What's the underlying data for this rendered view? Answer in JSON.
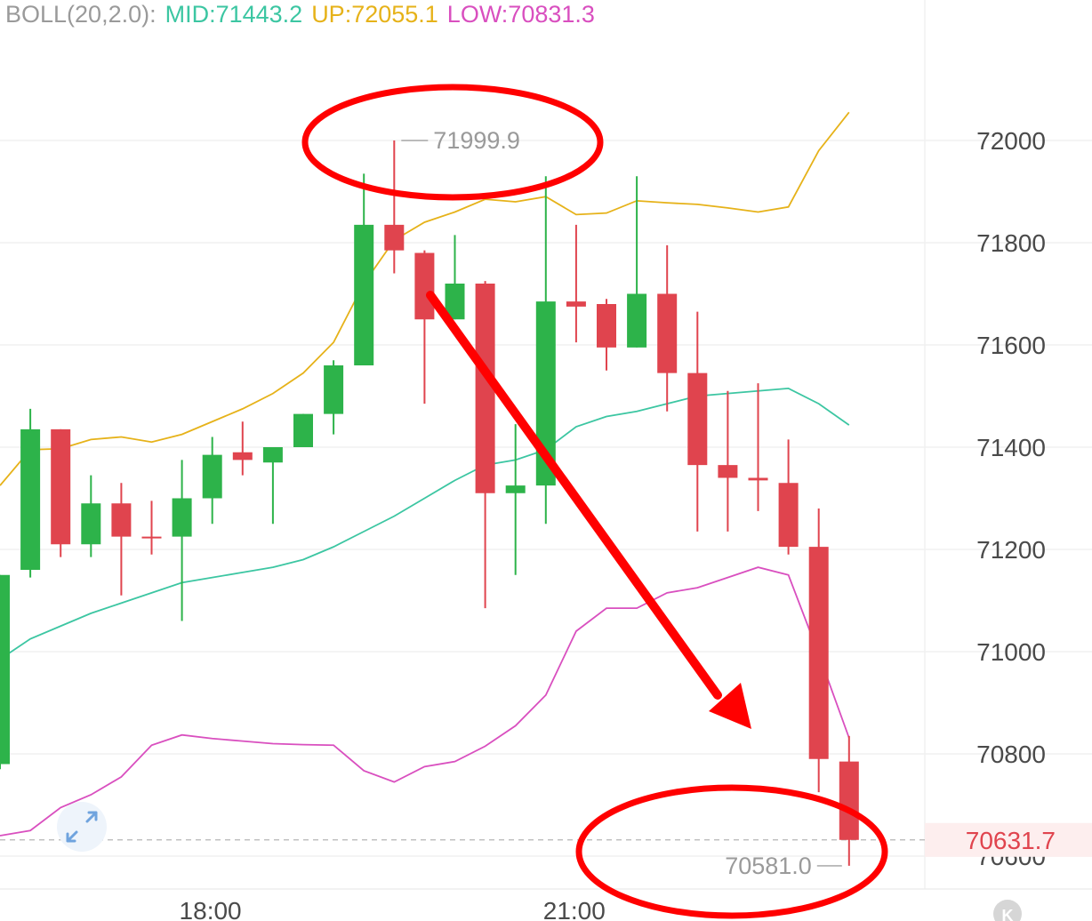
{
  "indicator": {
    "label": "BOLL(20,2.0):",
    "mid": "MID:71443.2",
    "up": "UP:72055.1",
    "low": "LOW:70831.3"
  },
  "colors": {
    "up_candle": "#2db34a",
    "down_candle": "#e0444e",
    "mid_line": "#3cc6a2",
    "up_line": "#e6b219",
    "low_line": "#d94fbf",
    "axis_text": "#4a4a4a",
    "annotation": "#ff0000",
    "last_price_text": "#e0444e",
    "last_price_bg": "#fdeeee"
  },
  "chart_data": {
    "type": "candlestick",
    "ylim": [
      70500,
      72260
    ],
    "y_ticks": [
      "72000",
      "71800",
      "71600",
      "71400",
      "71200",
      "71000",
      "70800",
      "70600"
    ],
    "x_ticks": [
      {
        "label": "18:00",
        "index": 6
      },
      {
        "label": "21:00",
        "index": 18
      }
    ],
    "high_label": "71999.9",
    "low_label": "70581.0",
    "last_price": "70631.7",
    "last_price_value": 70631.7,
    "candles": [
      {
        "o": 70780,
        "c": 71150,
        "h": 71150,
        "l": 70770
      },
      {
        "o": 71160,
        "c": 71435,
        "h": 71475,
        "l": 71145
      },
      {
        "o": 71435,
        "c": 71210,
        "h": 71435,
        "l": 71185
      },
      {
        "o": 71210,
        "c": 71290,
        "h": 71345,
        "l": 71185
      },
      {
        "o": 71290,
        "c": 71225,
        "h": 71330,
        "l": 71110
      },
      {
        "o": 71225,
        "c": 71224,
        "h": 71295,
        "l": 71190
      },
      {
        "o": 71225,
        "c": 71300,
        "h": 71375,
        "l": 71060
      },
      {
        "o": 71300,
        "c": 71385,
        "h": 71420,
        "l": 71250
      },
      {
        "o": 71390,
        "c": 71375,
        "h": 71450,
        "l": 71345
      },
      {
        "o": 71370,
        "c": 71400,
        "h": 71400,
        "l": 71250
      },
      {
        "o": 71400,
        "c": 71465,
        "h": 71465,
        "l": 71400
      },
      {
        "o": 71465,
        "c": 71560,
        "h": 71570,
        "l": 71425
      },
      {
        "o": 71560,
        "c": 71835,
        "h": 71935,
        "l": 71560
      },
      {
        "o": 71835,
        "c": 71785,
        "h": 71999.9,
        "l": 71740
      },
      {
        "o": 71780,
        "c": 71650,
        "h": 71785,
        "l": 71485
      },
      {
        "o": 71650,
        "c": 71720,
        "h": 71815,
        "l": 71650
      },
      {
        "o": 71720,
        "c": 71310,
        "h": 71725,
        "l": 71085
      },
      {
        "o": 71310,
        "c": 71325,
        "h": 71445,
        "l": 71150
      },
      {
        "o": 71325,
        "c": 71685,
        "h": 71930,
        "l": 71250
      },
      {
        "o": 71685,
        "c": 71675,
        "h": 71835,
        "l": 71605
      },
      {
        "o": 71680,
        "c": 71595,
        "h": 71690,
        "l": 71550
      },
      {
        "o": 71595,
        "c": 71700,
        "h": 71930,
        "l": 71595
      },
      {
        "o": 71700,
        "c": 71545,
        "h": 71795,
        "l": 71470
      },
      {
        "o": 71545,
        "c": 71365,
        "h": 71665,
        "l": 71235
      },
      {
        "o": 71365,
        "c": 71340,
        "h": 71510,
        "l": 71235
      },
      {
        "o": 71340,
        "c": 71335,
        "h": 71525,
        "l": 71275
      },
      {
        "o": 71330,
        "c": 71205,
        "h": 71415,
        "l": 71190
      },
      {
        "o": 71205,
        "c": 70790,
        "h": 71280,
        "l": 70725
      },
      {
        "o": 70785,
        "c": 70631.7,
        "h": 70835,
        "l": 70581.0
      }
    ],
    "boll_up": [
      71325,
      71395,
      71397,
      71415,
      71420,
      71410,
      71425,
      71450,
      71475,
      71505,
      71545,
      71605,
      71720,
      71805,
      71840,
      71860,
      71885,
      71880,
      71890,
      71855,
      71858,
      71882,
      71878,
      71875,
      71868,
      71860,
      71870,
      71980,
      72055.1
    ],
    "boll_mid": [
      70985,
      71025,
      71050,
      71075,
      71095,
      71115,
      71135,
      71145,
      71155,
      71165,
      71180,
      71205,
      71235,
      71265,
      71300,
      71335,
      71365,
      71375,
      71395,
      71440,
      71460,
      71470,
      71485,
      71500,
      71505,
      71510,
      71515,
      71485,
      71443.2
    ],
    "boll_low": [
      70640,
      70650,
      70695,
      70720,
      70755,
      70817,
      70837,
      70830,
      70825,
      70820,
      70818,
      70817,
      70767,
      70745,
      70775,
      70785,
      70815,
      70855,
      70915,
      71040,
      71085,
      71085,
      71115,
      71125,
      71145,
      71165,
      71150,
      70995,
      70831.3
    ]
  }
}
